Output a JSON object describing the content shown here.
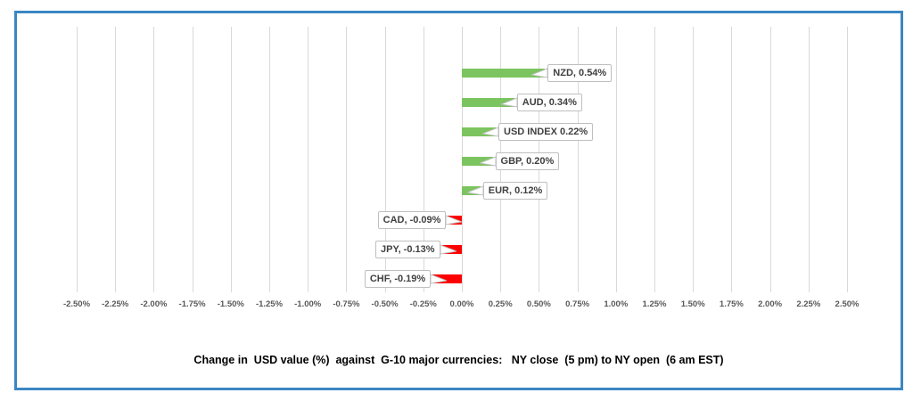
{
  "window": {
    "background": "#FFFFFF",
    "border_color": "#3A87C3"
  },
  "chart_data": {
    "type": "bar",
    "orientation": "horizontal",
    "title": "Change in  USD value (%)  against  G-10 major currencies:   NY close  (5 pm) to NY open  (6 am EST)",
    "xlabel": "",
    "ylabel": "",
    "categories": [
      "NZD",
      "AUD",
      "USD INDEX",
      "GBP",
      "EUR",
      "CAD",
      "JPY",
      "CHF"
    ],
    "values": [
      0.54,
      0.34,
      0.22,
      0.2,
      0.12,
      -0.09,
      -0.13,
      -0.19
    ],
    "data_labels": [
      "NZD, 0.54%",
      "AUD, 0.34%",
      "USD INDEX 0.22%",
      "GBP, 0.20%",
      "EUR, 0.12%",
      "CAD, -0.09%",
      "JPY, -0.13%",
      "CHF, -0.19%"
    ],
    "xlim": [
      -2.5,
      2.5
    ],
    "x_tick_step": 0.25,
    "x_tick_labels": [
      "-2.50%",
      "-2.25%",
      "-2.00%",
      "-1.75%",
      "-1.50%",
      "-1.25%",
      "-1.00%",
      "-0.75%",
      "-0.50%",
      "-0.25%",
      "0.00%",
      "0.25%",
      "0.50%",
      "0.75%",
      "1.00%",
      "1.25%",
      "1.50%",
      "1.75%",
      "2.00%",
      "2.25%",
      "2.50%"
    ],
    "grid": "vertical-only",
    "legend": "none",
    "positive_color": "#7CC45F",
    "negative_color": "#FF0000",
    "gridline_color": "#D9D9D9",
    "tick_text_color": "#595959",
    "label_box": {
      "bg": "#FFFFFF",
      "border": "#BFBFBF",
      "text_color": "#404040"
    }
  }
}
